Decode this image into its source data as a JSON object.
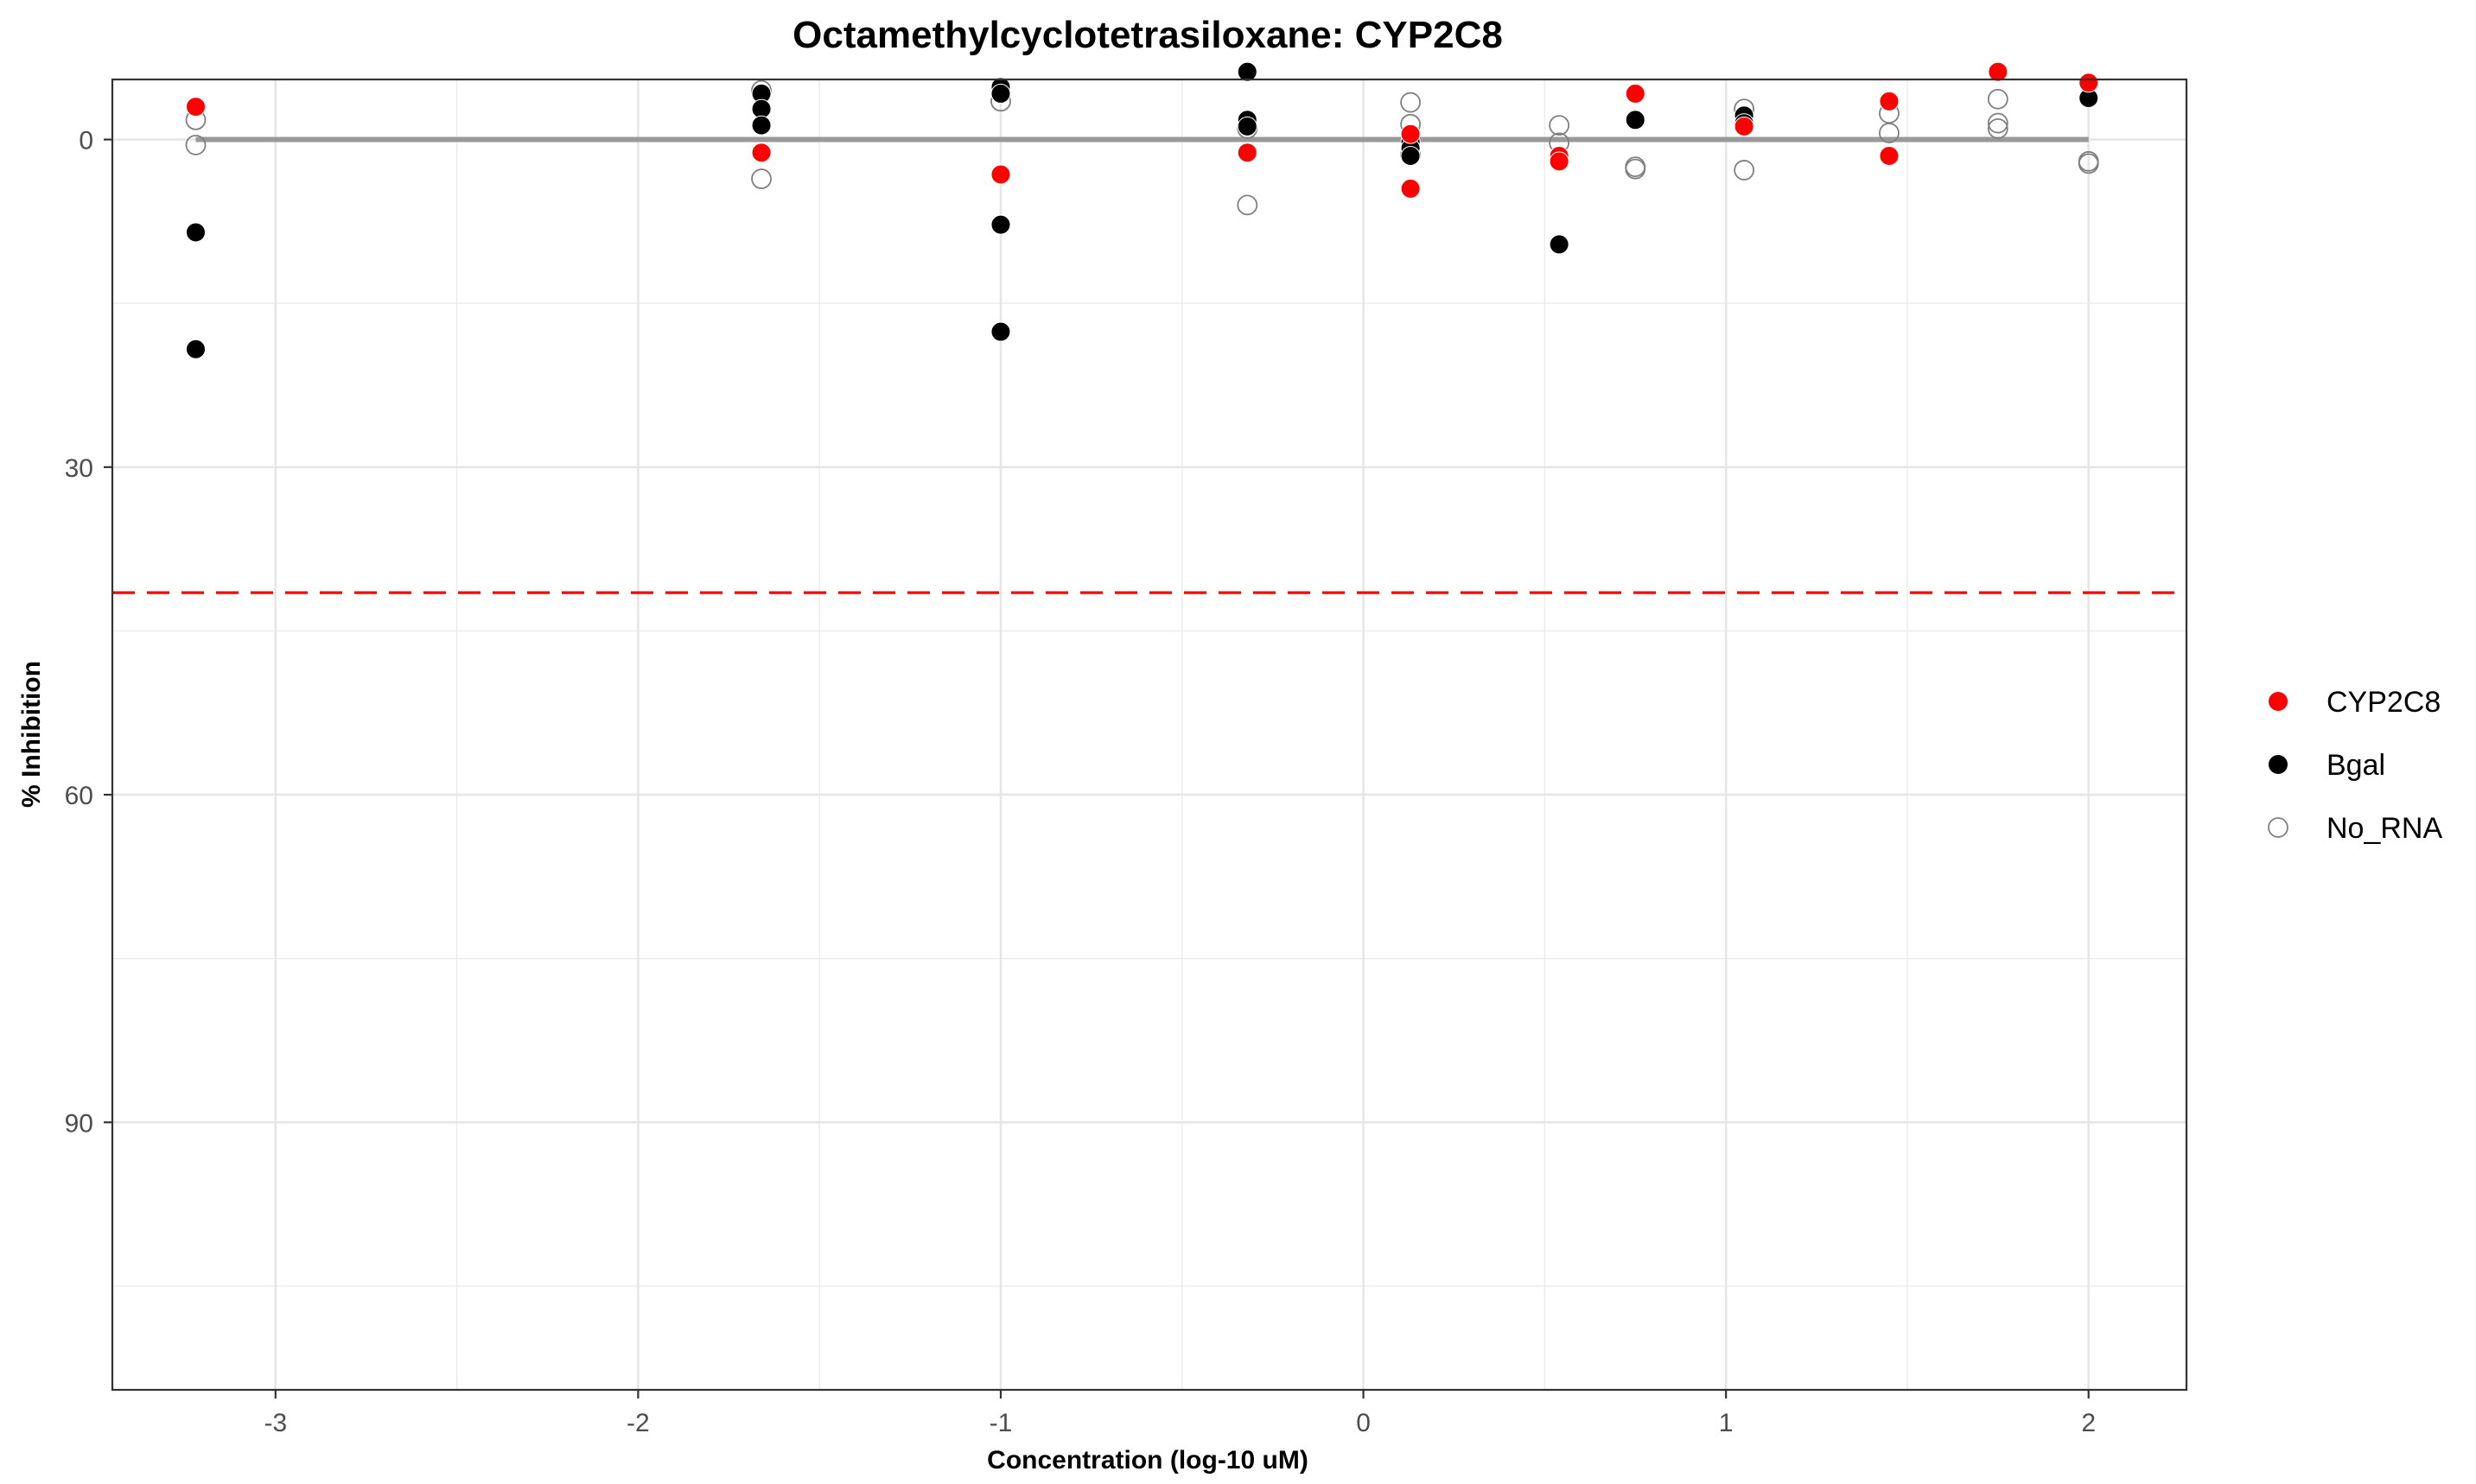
{
  "chart_data": {
    "type": "scatter",
    "title": "Octamethylcyclotetrasiloxane: CYP2C8",
    "xlabel": "Concentration (log-10 uM)",
    "ylabel": "% Inhibition",
    "xlim": [
      -3.45,
      2.27
    ],
    "ylim": [
      -5.5,
      114.5
    ],
    "y_reversed": true,
    "x_ticks": [
      -3,
      -2,
      -1,
      0,
      1,
      2
    ],
    "x_tick_labels": [
      "-3",
      "-2",
      "-1",
      "0",
      "1",
      "2"
    ],
    "y_ticks": [
      0,
      30,
      60,
      90
    ],
    "y_tick_labels": [
      "0",
      "30",
      "60",
      "90"
    ],
    "grid": true,
    "legend_position": "right",
    "fit_line": {
      "x": [
        -3.22,
        2.0
      ],
      "y": [
        0,
        0
      ],
      "color": "#999999"
    },
    "threshold_line": {
      "y": 41.5,
      "color": "#ff0000",
      "style": "dashed"
    },
    "series": [
      {
        "name": "CYP2C8",
        "marker": "filled",
        "color": "#ff0000",
        "points": [
          {
            "x": -3.22,
            "y": -3.0
          },
          {
            "x": -1.66,
            "y": 1.2
          },
          {
            "x": -1.0,
            "y": 3.2
          },
          {
            "x": -0.32,
            "y": 1.2
          },
          {
            "x": 0.13,
            "y": -0.5
          },
          {
            "x": 0.13,
            "y": 4.5
          },
          {
            "x": 0.54,
            "y": 1.5
          },
          {
            "x": 0.54,
            "y": 2.0
          },
          {
            "x": 0.75,
            "y": -4.2
          },
          {
            "x": 1.05,
            "y": -1.2
          },
          {
            "x": 1.45,
            "y": -3.5
          },
          {
            "x": 1.45,
            "y": 1.5
          },
          {
            "x": 1.75,
            "y": -6.2
          },
          {
            "x": 2.0,
            "y": -5.2
          }
        ]
      },
      {
        "name": "Bgal",
        "marker": "filled",
        "color": "#000000",
        "points": [
          {
            "x": -3.22,
            "y": 8.5
          },
          {
            "x": -3.22,
            "y": 19.2
          },
          {
            "x": -1.66,
            "y": -4.2
          },
          {
            "x": -1.66,
            "y": -2.8
          },
          {
            "x": -1.66,
            "y": -1.3
          },
          {
            "x": -1.0,
            "y": -4.8
          },
          {
            "x": -1.0,
            "y": -4.2
          },
          {
            "x": -1.0,
            "y": 7.8
          },
          {
            "x": -1.0,
            "y": 17.6
          },
          {
            "x": -0.32,
            "y": -6.2
          },
          {
            "x": -0.32,
            "y": -1.8
          },
          {
            "x": -0.32,
            "y": -1.2
          },
          {
            "x": 0.13,
            "y": 0.2
          },
          {
            "x": 0.13,
            "y": 0.8
          },
          {
            "x": 0.13,
            "y": 1.5
          },
          {
            "x": 0.54,
            "y": 9.6
          },
          {
            "x": 0.75,
            "y": -1.8
          },
          {
            "x": 1.05,
            "y": -2.2
          },
          {
            "x": 1.05,
            "y": -1.5
          },
          {
            "x": 2.0,
            "y": -3.8
          }
        ]
      },
      {
        "name": "No_RNA",
        "marker": "open",
        "color": "#7f7f7f",
        "points": [
          {
            "x": -3.22,
            "y": -1.8
          },
          {
            "x": -3.22,
            "y": 0.5
          },
          {
            "x": -1.66,
            "y": -4.5
          },
          {
            "x": -1.66,
            "y": 3.6
          },
          {
            "x": -1.0,
            "y": -3.5
          },
          {
            "x": -0.32,
            "y": -1.0
          },
          {
            "x": -0.32,
            "y": 6.0
          },
          {
            "x": 0.13,
            "y": -3.4
          },
          {
            "x": 0.13,
            "y": -1.4
          },
          {
            "x": 0.13,
            "y": 1.4
          },
          {
            "x": 0.54,
            "y": -1.3
          },
          {
            "x": 0.54,
            "y": 0.3
          },
          {
            "x": 0.75,
            "y": 2.5
          },
          {
            "x": 0.75,
            "y": 2.7
          },
          {
            "x": 1.05,
            "y": -2.8
          },
          {
            "x": 1.05,
            "y": 2.8
          },
          {
            "x": 1.45,
            "y": -2.4
          },
          {
            "x": 1.45,
            "y": -0.6
          },
          {
            "x": 1.75,
            "y": -3.7
          },
          {
            "x": 1.75,
            "y": -1.5
          },
          {
            "x": 1.75,
            "y": -1.0
          },
          {
            "x": 2.0,
            "y": 2.0
          },
          {
            "x": 2.0,
            "y": 2.2
          }
        ]
      }
    ]
  }
}
